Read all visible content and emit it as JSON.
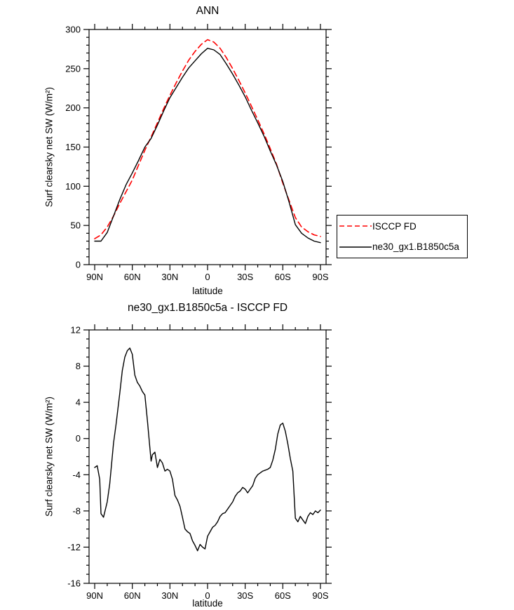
{
  "figure": {
    "background": "#ffffff"
  },
  "chart_data": [
    {
      "type": "line",
      "title": "ANN",
      "xlabel": "latitude",
      "ylabel": "Surf clearsky net SW (W/m²)",
      "xlim": [
        94.5,
        -94.5
      ],
      "ylim": [
        0,
        300
      ],
      "xticks": [
        90,
        60,
        30,
        0,
        -30,
        -60,
        -90
      ],
      "xtick_labels": [
        "90N",
        "60N",
        "30N",
        "0",
        "30S",
        "60S",
        "90S"
      ],
      "xtick_minor_step": 10,
      "yticks": [
        0,
        50,
        100,
        150,
        200,
        250,
        300
      ],
      "ytick_labels": [
        "0",
        "50",
        "100",
        "150",
        "200",
        "250",
        "300"
      ],
      "ytick_minor_step": 10,
      "grid": false,
      "legend_position": "right-outside",
      "legend": [
        {
          "label": "ISCCP FD",
          "color": "#ff0000",
          "dash": true
        },
        {
          "label": "ne30_gx1.B1850c5a",
          "color": "#000000",
          "dash": false
        }
      ],
      "series": [
        {
          "name": "ISCCP FD",
          "color": "#ff0000",
          "dash": "8,5",
          "width": 1.6,
          "x": [
            90,
            85,
            80,
            75,
            70,
            65,
            60,
            55,
            50,
            45,
            40,
            35,
            30,
            25,
            20,
            15,
            10,
            5,
            0,
            -5,
            -10,
            -15,
            -20,
            -25,
            -30,
            -35,
            -40,
            -45,
            -50,
            -55,
            -60,
            -65,
            -70,
            -75,
            -80,
            -85,
            -90
          ],
          "y": [
            33,
            38,
            48,
            62,
            78,
            93,
            108,
            127,
            146,
            163,
            181,
            199,
            216,
            232,
            247,
            261,
            272,
            281,
            287,
            284,
            276,
            264,
            250,
            235,
            219,
            202,
            185,
            167,
            148,
            128,
            104,
            82,
            60,
            48,
            42,
            38,
            36
          ]
        },
        {
          "name": "ne30_gx1.B1850c5a",
          "color": "#000000",
          "dash": null,
          "width": 1.4,
          "x": [
            90,
            85,
            80,
            75,
            70,
            65,
            60,
            55,
            50,
            45,
            40,
            35,
            30,
            25,
            20,
            15,
            10,
            5,
            0,
            -5,
            -10,
            -15,
            -20,
            -25,
            -30,
            -35,
            -40,
            -45,
            -50,
            -55,
            -60,
            -65,
            -70,
            -75,
            -80,
            -85,
            -90
          ],
          "y": [
            30,
            30,
            41,
            62,
            83,
            102,
            117,
            133,
            150,
            161,
            178,
            196,
            213,
            226,
            239,
            251,
            260,
            269,
            276,
            274,
            268,
            256,
            243,
            229,
            214,
            197,
            181,
            164,
            145,
            127,
            106,
            80,
            51,
            40,
            34,
            30,
            28
          ]
        }
      ]
    },
    {
      "type": "line",
      "title": "ne30_gx1.B1850c5a - ISCCP FD",
      "xlabel": "latitude",
      "ylabel": "Surf clearsky net SW (W/m²)",
      "xlim": [
        94.5,
        -94.5
      ],
      "ylim": [
        -16,
        12
      ],
      "xticks": [
        90,
        60,
        30,
        0,
        -30,
        -60,
        -90
      ],
      "xtick_labels": [
        "90N",
        "60N",
        "30N",
        "0",
        "30S",
        "60S",
        "90S"
      ],
      "xtick_minor_step": 10,
      "yticks": [
        -16,
        -12,
        -8,
        -4,
        0,
        4,
        8,
        12
      ],
      "ytick_labels": [
        "-16",
        "-12",
        "-8",
        "-4",
        "0",
        "4",
        "8",
        "12"
      ],
      "ytick_minor_step": 1,
      "grid": false,
      "series": [
        {
          "name": "ne30_gx1.B1850c5a - ISCCP FD",
          "color": "#000000",
          "dash": null,
          "width": 1.4,
          "x": [
            90,
            88,
            86,
            85,
            83,
            80,
            78,
            75,
            73,
            70,
            68,
            66,
            64,
            62,
            60,
            58,
            56,
            54,
            52,
            50,
            48,
            46,
            45,
            44,
            42,
            40,
            38,
            36,
            34,
            32,
            30,
            28,
            26,
            24,
            22,
            20,
            18,
            16,
            14,
            12,
            10,
            8,
            6,
            4,
            2,
            0,
            -2,
            -4,
            -6,
            -8,
            -10,
            -12,
            -14,
            -16,
            -18,
            -20,
            -22,
            -24,
            -26,
            -28,
            -30,
            -32,
            -34,
            -36,
            -38,
            -40,
            -42,
            -44,
            -46,
            -48,
            -50,
            -52,
            -54,
            -56,
            -58,
            -60,
            -62,
            -64,
            -66,
            -68,
            -70,
            -72,
            -74,
            -76,
            -78,
            -80,
            -82,
            -84,
            -86,
            -88,
            -90
          ],
          "y": [
            -3.2,
            -3.0,
            -4.5,
            -8.3,
            -8.7,
            -7.0,
            -5.0,
            -0.5,
            1.5,
            5.0,
            7.5,
            9.0,
            9.7,
            10.0,
            9.3,
            7.0,
            6.2,
            5.8,
            5.2,
            4.8,
            2.0,
            -1.0,
            -2.5,
            -1.8,
            -1.5,
            -3.2,
            -2.3,
            -2.7,
            -3.6,
            -3.4,
            -3.6,
            -4.5,
            -6.3,
            -6.8,
            -7.5,
            -8.7,
            -10.0,
            -10.3,
            -10.5,
            -11.3,
            -11.8,
            -12.4,
            -11.7,
            -12.0,
            -12.2,
            -10.8,
            -10.3,
            -9.8,
            -9.6,
            -9.2,
            -8.6,
            -8.3,
            -8.2,
            -7.8,
            -7.4,
            -7.0,
            -6.4,
            -6.0,
            -5.8,
            -5.4,
            -5.6,
            -6.0,
            -5.6,
            -5.2,
            -4.4,
            -4.0,
            -3.8,
            -3.6,
            -3.5,
            -3.4,
            -3.2,
            -2.4,
            -1.2,
            0.5,
            1.5,
            1.7,
            0.8,
            -0.6,
            -2.2,
            -3.6,
            -8.8,
            -9.2,
            -8.6,
            -9.0,
            -9.4,
            -8.6,
            -8.2,
            -8.4,
            -8.0,
            -8.2,
            -7.9
          ]
        }
      ]
    }
  ]
}
